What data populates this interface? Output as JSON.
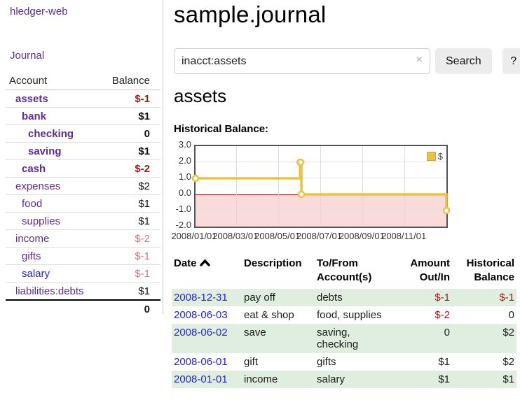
{
  "app": {
    "title": "hledger-web"
  },
  "sidebar": {
    "journal_link": "Journal",
    "table": {
      "account_header": "Account",
      "balance_header": "Balance",
      "rows": [
        {
          "label": "assets",
          "balance": "$-1",
          "indent": 0,
          "matched": true,
          "neg": "strong",
          "link": "visited"
        },
        {
          "label": "bank",
          "balance": "$1",
          "indent": 1,
          "matched": true,
          "neg": null,
          "link": "visited"
        },
        {
          "label": "checking",
          "balance": "0",
          "indent": 2,
          "matched": true,
          "neg": null,
          "link": "visited"
        },
        {
          "label": "saving",
          "balance": "$1",
          "indent": 2,
          "matched": true,
          "neg": null,
          "link": "visited"
        },
        {
          "label": "cash",
          "balance": "$-2",
          "indent": 1,
          "matched": true,
          "neg": "strong",
          "link": "visited"
        },
        {
          "label": "expenses",
          "balance": "$2",
          "indent": 0,
          "matched": false,
          "neg": null,
          "link": "visited"
        },
        {
          "label": "food",
          "balance": "$1",
          "indent": 1,
          "matched": false,
          "neg": null,
          "link": "visited"
        },
        {
          "label": "supplies",
          "balance": "$1",
          "indent": 1,
          "matched": false,
          "neg": null,
          "link": "visited"
        },
        {
          "label": "income",
          "balance": "$-2",
          "indent": 0,
          "matched": false,
          "neg": "soft",
          "link": "visited"
        },
        {
          "label": "gifts",
          "balance": "$-1",
          "indent": 1,
          "matched": false,
          "neg": "soft",
          "link": "visited"
        },
        {
          "label": "salary",
          "balance": "$-1",
          "indent": 1,
          "matched": false,
          "neg": "soft",
          "link": "new"
        },
        {
          "label": "liabilities:debts",
          "balance": "$1",
          "indent": 0,
          "matched": false,
          "neg": null,
          "link": "visited"
        }
      ],
      "total": "0"
    }
  },
  "main": {
    "title": "sample.journal",
    "account_heading": "assets",
    "chart_label": "Historical Balance:"
  },
  "search": {
    "query": "inacct:assets",
    "clear_icon": "×",
    "button_label": "Search",
    "help_label": "?"
  },
  "chart_data": {
    "type": "line",
    "step": true,
    "title": "Historical Balance",
    "series": [
      {
        "name": "$",
        "color": "#edc240",
        "points": [
          [
            "2008-01-01",
            1
          ],
          [
            "2008-06-01",
            2
          ],
          [
            "2008-06-02",
            2
          ],
          [
            "2008-06-03",
            0
          ],
          [
            "2008-12-31",
            -1
          ]
        ]
      }
    ],
    "x_range": [
      "2008-01-01",
      "2008-12-31"
    ],
    "y_range": [
      -2,
      3
    ],
    "y_ticks": [
      {
        "v": 3,
        "label": "3.0"
      },
      {
        "v": 2,
        "label": "2.0"
      },
      {
        "v": 1,
        "label": "1.0"
      },
      {
        "v": 0,
        "label": "0.0"
      },
      {
        "v": -1,
        "label": "-1.0"
      },
      {
        "v": -2,
        "label": "-2.0"
      }
    ],
    "x_ticks": [
      {
        "date": "2008-01-01",
        "label": "2008/01/01"
      },
      {
        "date": "2008-03-01",
        "label": "2008/03/01"
      },
      {
        "date": "2008-05-01",
        "label": "2008/05/01"
      },
      {
        "date": "2008-07-01",
        "label": "2008/07/01"
      },
      {
        "date": "2008-09-01",
        "label": "2008/09/01"
      },
      {
        "date": "2008-11-01",
        "label": "2008/11/01"
      }
    ],
    "legend": {
      "label": "$",
      "position": "top-right"
    },
    "grid": true,
    "zero_line_color": "#a01010",
    "negative_region_color": "#fbdada"
  },
  "register": {
    "headers": {
      "date": "Date",
      "description": "Description",
      "accounts_line1": "To/From",
      "accounts_line2": "Account(s)",
      "amount_line1": "Amount",
      "amount_line2": "Out/In",
      "balance_line1": "Historical",
      "balance_line2": "Balance"
    },
    "rows": [
      {
        "date": "2008-12-31",
        "description": "pay off",
        "accounts": "debts",
        "amount": "$-1",
        "balance": "$-1",
        "amount_neg": true,
        "balance_neg": true
      },
      {
        "date": "2008-06-03",
        "description": "eat & shop",
        "accounts": "food, supplies",
        "amount": "$-2",
        "balance": "0",
        "amount_neg": true,
        "balance_neg": false
      },
      {
        "date": "2008-06-02",
        "description": "save",
        "accounts": "saving, checking",
        "amount": "0",
        "balance": "$2",
        "amount_neg": false,
        "balance_neg": false
      },
      {
        "date": "2008-06-01",
        "description": "gift",
        "accounts": "gifts",
        "amount": "$1",
        "balance": "$2",
        "amount_neg": false,
        "balance_neg": false
      },
      {
        "date": "2008-01-01",
        "description": "income",
        "accounts": "salary",
        "amount": "$1",
        "balance": "$1",
        "amount_neg": false,
        "balance_neg": false
      }
    ]
  },
  "colors": {
    "link_visited": "#5c2d91",
    "link_new": "#2323dc",
    "negative_strong": "#9d1a1a",
    "negative_soft": "#c47a78",
    "row_stripe_green": "#dfeede",
    "chart_gold": "#edc240",
    "chart_negative_fill": "#fbdada",
    "chart_zero_line": "#a01010"
  }
}
